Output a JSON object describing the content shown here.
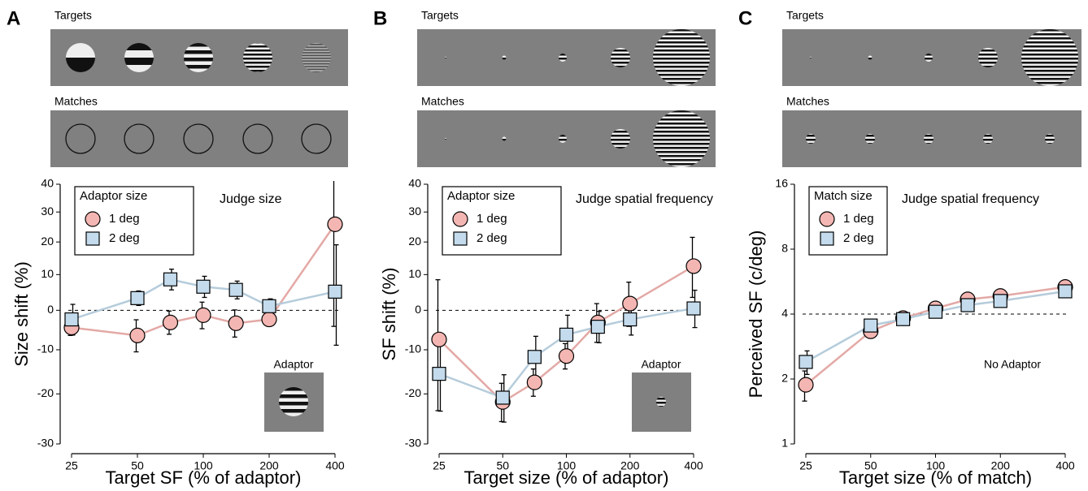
{
  "chart_data": [
    {
      "type": "line",
      "panel": "A",
      "top_label": "Targets",
      "bottom_label": "Matches",
      "title": "Judge size",
      "legend_title": "Adaptor size",
      "inset_label": "Adaptor",
      "xlabel": "Target SF (% of adaptor)",
      "ylabel": "Size shift (%)",
      "xscale": "log",
      "yscale": "log-ratio",
      "x": [
        25,
        50,
        70.7,
        100,
        141,
        200,
        400
      ],
      "xlim": [
        25,
        400
      ],
      "xticks": [
        25,
        50,
        100,
        200,
        400
      ],
      "ylim": [
        -30,
        40
      ],
      "yticks": [
        -30,
        -20,
        -10,
        0,
        10,
        20,
        30,
        40
      ],
      "reference_line": 0,
      "series": [
        {
          "name": "1 deg",
          "color": "#f4b6b2",
          "values": [
            -4.5,
            -6.5,
            -3.2,
            -1.3,
            -3.4,
            -2.4,
            25.8
          ],
          "errors": [
            2,
            4,
            3,
            3.5,
            3.5,
            1.5,
            30
          ]
        },
        {
          "name": "2 deg",
          "color": "#c3dbec",
          "values": [
            -2.4,
            3.3,
            8.6,
            6.5,
            5.6,
            1.1,
            5.1
          ],
          "errors": [
            4,
            2,
            3,
            3,
            2.5,
            2,
            14
          ]
        }
      ]
    },
    {
      "type": "line",
      "panel": "B",
      "top_label": "Targets",
      "bottom_label": "Matches",
      "title": "Judge spatial frequency",
      "legend_title": "Adaptor size",
      "inset_label": "Adaptor",
      "xlabel": "Target size (% of adaptor)",
      "ylabel": "SF shift (%)",
      "xscale": "log",
      "yscale": "log-ratio",
      "x": [
        25,
        50,
        70.7,
        100,
        141,
        200,
        400
      ],
      "xlim": [
        25,
        400
      ],
      "xticks": [
        25,
        50,
        100,
        200,
        400
      ],
      "ylim": [
        -30,
        40
      ],
      "yticks": [
        -30,
        -20,
        -10,
        0,
        10,
        20,
        30,
        40
      ],
      "reference_line": 0,
      "series": [
        {
          "name": "1 deg",
          "color": "#f4b6b2",
          "values": [
            -7.5,
            -21.7,
            -17.5,
            -11.5,
            -3.2,
            1.8,
            12.5
          ],
          "errors": [
            16,
            4,
            3,
            3,
            5,
            6,
            9
          ]
        },
        {
          "name": "2 deg",
          "color": "#c3dbec",
          "values": [
            -15.6,
            -20.8,
            -11.7,
            -6.3,
            -4.3,
            -2.4,
            0.5
          ],
          "errors": [
            8,
            5,
            5,
            5,
            4,
            4,
            5
          ]
        }
      ]
    },
    {
      "type": "line",
      "panel": "C",
      "top_label": "Targets",
      "bottom_label": "Matches",
      "title": "Judge spatial frequency",
      "legend_title": "Match size",
      "inset_label": "No Adaptor",
      "xlabel": "Target size (% of match)",
      "ylabel": "Perceived SF (c/deg)",
      "xscale": "log",
      "yscale": "log",
      "x": [
        25,
        50,
        70.7,
        100,
        141,
        200,
        400
      ],
      "xlim": [
        25,
        400
      ],
      "xticks": [
        25,
        50,
        100,
        200,
        400
      ],
      "ylim": [
        1,
        16
      ],
      "yticks": [
        1,
        2,
        4,
        8,
        16
      ],
      "reference_line": 4,
      "series": [
        {
          "name": "1 deg",
          "color": "#f4b6b2",
          "values": [
            1.88,
            3.33,
            3.83,
            4.25,
            4.68,
            4.85,
            5.34
          ],
          "errors": [
            0.3,
            0.15,
            0.1,
            0.1,
            0.1,
            0.1,
            0.1
          ]
        },
        {
          "name": "2 deg",
          "color": "#c3dbec",
          "values": [
            2.4,
            3.54,
            3.79,
            4.1,
            4.4,
            4.6,
            5.1
          ],
          "errors": [
            0.3,
            0.15,
            0.1,
            0.1,
            0.1,
            0.1,
            0.1
          ]
        }
      ]
    }
  ]
}
